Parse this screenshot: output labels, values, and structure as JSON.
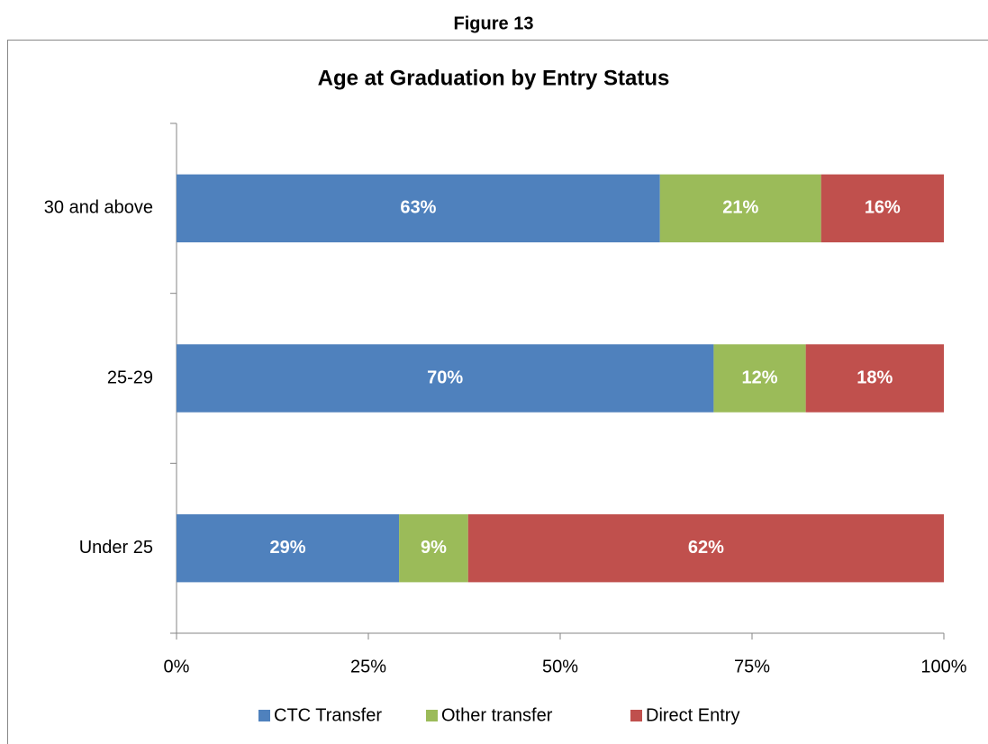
{
  "figure_label": "Figure 13",
  "chart_data": {
    "type": "stacked_bar_horizontal",
    "title": "Age at Graduation by Entry Status",
    "categories": [
      "30 and above",
      "25-29",
      "Under 25"
    ],
    "series": [
      {
        "name": "CTC Transfer",
        "color": "#4f81bd",
        "values": [
          63,
          70,
          29
        ],
        "value_labels": [
          "63%",
          "70%",
          "29%"
        ]
      },
      {
        "name": "Other transfer",
        "color": "#9bbb59",
        "values": [
          21,
          12,
          9
        ],
        "value_labels": [
          "21%",
          "12%",
          "9%"
        ]
      },
      {
        "name": "Direct Entry",
        "color": "#c0504d",
        "values": [
          16,
          18,
          62
        ],
        "value_labels": [
          "16%",
          "18%",
          "62%"
        ]
      }
    ],
    "xlim": [
      0,
      100
    ],
    "xticks": [
      {
        "value": 0,
        "label": "0%"
      },
      {
        "value": 25,
        "label": "25%"
      },
      {
        "value": 50,
        "label": "50%"
      },
      {
        "value": 75,
        "label": "75%"
      },
      {
        "value": 100,
        "label": "100%"
      }
    ],
    "legend": "bottom"
  }
}
